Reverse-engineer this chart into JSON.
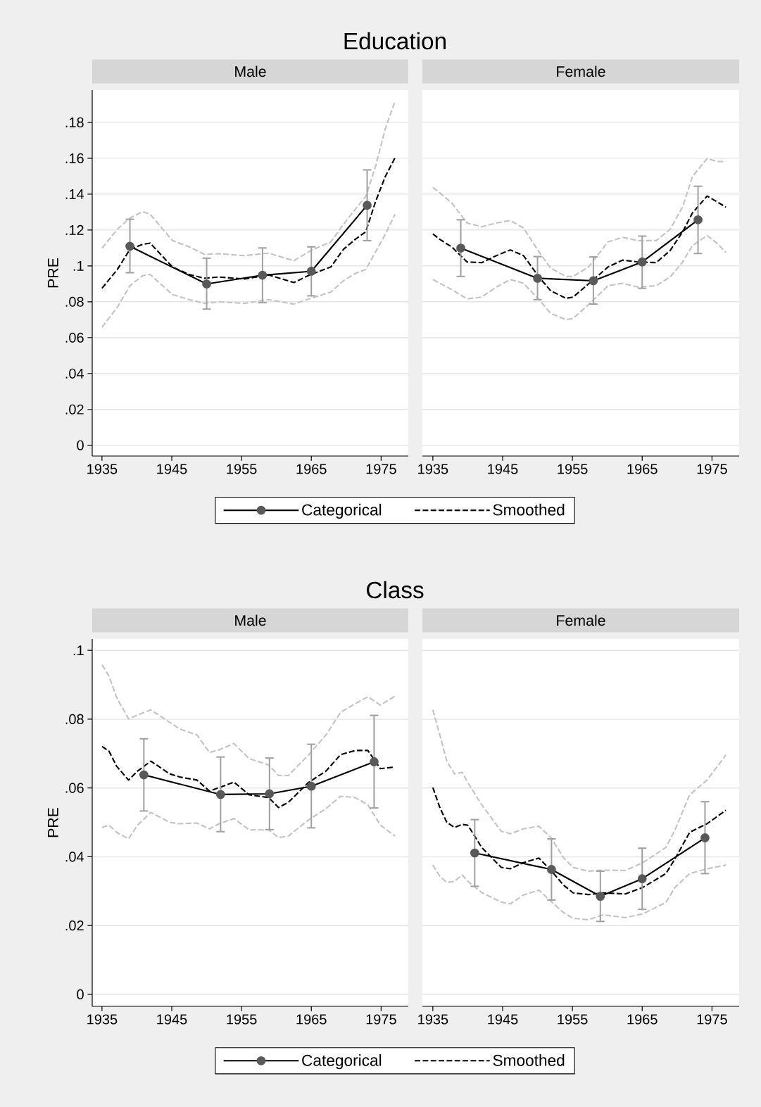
{
  "chart_data": [
    {
      "type": "line",
      "title": "Education",
      "subtitle": "Male",
      "ylabel": "PRE",
      "xlim": [
        1933.6,
        1978.9
      ],
      "ylim": [
        -0.006,
        0.198
      ],
      "xticks": [
        1935,
        1945,
        1955,
        1965,
        1975
      ],
      "yticks": [
        {
          "value": 0,
          "label": "0"
        },
        {
          "value": 0.02,
          "label": ".02"
        },
        {
          "value": 0.04,
          "label": ".04"
        },
        {
          "value": 0.06,
          "label": ".06"
        },
        {
          "value": 0.08,
          "label": ".08"
        },
        {
          "value": 0.1,
          "label": ".1"
        },
        {
          "value": 0.12,
          "label": ".12"
        },
        {
          "value": 0.14,
          "label": ".14"
        },
        {
          "value": 0.16,
          "label": ".16"
        },
        {
          "value": 0.18,
          "label": ".18"
        }
      ],
      "grid": "y",
      "legend": "bottom",
      "series": [
        {
          "name": "Categorical",
          "color": "#000000",
          "marker": "circle",
          "x": [
            1939,
            1950,
            1958,
            1965,
            1973
          ],
          "values": [
            0.1109,
            0.0899,
            0.0948,
            0.097,
            0.1338
          ],
          "errors": [
            [
              0.0962,
              0.126
            ],
            [
              0.0759,
              0.1043
            ],
            [
              0.0795,
              0.11
            ],
            [
              0.0833,
              0.1106
            ],
            [
              0.1141,
              0.1535
            ]
          ]
        },
        {
          "name": "Smoothed",
          "color": "#000000",
          "marker": "none",
          "line_style": "dashed",
          "x": [
            1935,
            1937.2,
            1939.0,
            1940.8,
            1941.9,
            1945.1,
            1947.5,
            1949.7,
            1951.8,
            1955.4,
            1958.9,
            1962.5,
            1964.9,
            1967.8,
            1969.6,
            1971.3,
            1972.8,
            1974.2,
            1975.6,
            1977.0
          ],
          "values": [
            0.0875,
            0.098,
            0.1092,
            0.112,
            0.1127,
            0.0994,
            0.0952,
            0.0931,
            0.0938,
            0.0927,
            0.0949,
            0.0907,
            0.0952,
            0.0994,
            0.1092,
            0.1148,
            0.119,
            0.1358,
            0.1498,
            0.1603
          ]
        },
        {
          "color": "#c4c4c4",
          "marker": "none",
          "line_style": "dashed",
          "x": [
            1935,
            1937.2,
            1939.0,
            1940.8,
            1941.9,
            1945.1,
            1947.5,
            1949.7,
            1951.8,
            1955.4,
            1958.9,
            1962.5,
            1964.9,
            1967.8,
            1969.6,
            1971.3,
            1972.8,
            1974.2,
            1975.6,
            1977.0
          ],
          "values": [
            0.0658,
            0.077,
            0.0889,
            0.0945,
            0.0952,
            0.084,
            0.0812,
            0.0791,
            0.08,
            0.0791,
            0.0812,
            0.0787,
            0.0819,
            0.0854,
            0.0917,
            0.0958,
            0.098,
            0.1078,
            0.1176,
            0.1288
          ]
        },
        {
          "color": "#c4c4c4",
          "marker": "none",
          "line_style": "dashed",
          "x": [
            1935,
            1937.2,
            1939.0,
            1940.8,
            1941.9,
            1945.1,
            1947.5,
            1949.7,
            1951.8,
            1955.4,
            1958.9,
            1962.5,
            1964.9,
            1967.8,
            1969.6,
            1971.3,
            1972.8,
            1974.2,
            1975.6,
            1977.0
          ],
          "values": [
            0.1099,
            0.1204,
            0.1267,
            0.1302,
            0.1288,
            0.1141,
            0.1106,
            0.1064,
            0.1068,
            0.1057,
            0.1071,
            0.1029,
            0.1085,
            0.1134,
            0.1232,
            0.1316,
            0.1386,
            0.1554,
            0.1764,
            0.1918
          ]
        }
      ]
    },
    {
      "type": "line",
      "subtitle": "Female",
      "xlim": [
        1933.5,
        1978.9
      ],
      "ylim": [
        -0.006,
        0.198
      ],
      "xticks": [
        1935,
        1945,
        1955,
        1965,
        1975
      ],
      "yticks": [
        {
          "value": 0,
          "label": null
        },
        {
          "value": 0.02,
          "label": null
        },
        {
          "value": 0.04,
          "label": null
        },
        {
          "value": 0.06,
          "label": null
        },
        {
          "value": 0.08,
          "label": null
        },
        {
          "value": 0.1,
          "label": null
        },
        {
          "value": 0.12,
          "label": null
        },
        {
          "value": 0.14,
          "label": null
        },
        {
          "value": 0.16,
          "label": null
        },
        {
          "value": 0.18,
          "label": null
        }
      ],
      "grid": "y",
      "tick_labels": "x",
      "series": [
        {
          "color": "#000000",
          "marker": "circle",
          "x": [
            1939,
            1950,
            1958,
            1965,
            1973
          ],
          "values": [
            0.1099,
            0.0931,
            0.0917,
            0.1022,
            0.1257
          ],
          "errors": [
            [
              0.0941,
              0.1257
            ],
            [
              0.0812,
              0.1052
            ],
            [
              0.0787,
              0.105
            ],
            [
              0.0875,
              0.1166
            ],
            [
              0.1069,
              0.1444
            ]
          ]
        },
        {
          "color": "#000000",
          "marker": "none",
          "line_style": "dashed",
          "x": [
            1935,
            1936,
            1937.7,
            1939.9,
            1942,
            1944.1,
            1946.1,
            1948,
            1950.2,
            1951.9,
            1954.1,
            1955.1,
            1957.3,
            1960.1,
            1962.2,
            1964.4,
            1967,
            1969,
            1970.8,
            1972.2,
            1974.3,
            1975.7,
            1977
          ],
          "values": [
            0.1178,
            0.1148,
            0.1106,
            0.1022,
            0.1018,
            0.1057,
            0.1089,
            0.1057,
            0.0938,
            0.0861,
            0.0819,
            0.0826,
            0.0899,
            0.0994,
            0.1032,
            0.1022,
            0.1018,
            0.1085,
            0.119,
            0.1295,
            0.1389,
            0.1358,
            0.1327
          ]
        },
        {
          "color": "#c4c4c4",
          "marker": "none",
          "line_style": "dashed",
          "x": [
            1935,
            1936,
            1937.7,
            1939.9,
            1942,
            1944.1,
            1946.1,
            1948,
            1950.2,
            1951.9,
            1954.1,
            1955.1,
            1957.3,
            1960.1,
            1962.2,
            1964.4,
            1967,
            1969,
            1970.8,
            1972.2,
            1974.3,
            1975.7,
            1977
          ],
          "values": [
            0.0924,
            0.0903,
            0.0868,
            0.0816,
            0.0826,
            0.0882,
            0.0924,
            0.0903,
            0.0812,
            0.0735,
            0.07,
            0.0707,
            0.0784,
            0.0889,
            0.0903,
            0.0882,
            0.0889,
            0.0938,
            0.1022,
            0.1113,
            0.1169,
            0.1127,
            0.1075
          ]
        },
        {
          "color": "#c4c4c4",
          "marker": "none",
          "line_style": "dashed",
          "x": [
            1935,
            1936,
            1937.7,
            1939.9,
            1942,
            1944.1,
            1946.1,
            1948,
            1950.2,
            1951.9,
            1954.1,
            1955.1,
            1957.3,
            1960.1,
            1962.2,
            1964.4,
            1967,
            1969,
            1970.8,
            1972.2,
            1974.3,
            1975.7,
            1977
          ],
          "values": [
            0.1437,
            0.1407,
            0.1351,
            0.1239,
            0.1218,
            0.1239,
            0.1253,
            0.1211,
            0.1078,
            0.0987,
            0.0941,
            0.0941,
            0.0994,
            0.1134,
            0.1159,
            0.1141,
            0.1141,
            0.1204,
            0.133,
            0.1498,
            0.1598,
            0.1582,
            0.1582
          ]
        }
      ]
    },
    {
      "type": "line",
      "title": "Class",
      "subtitle": "Male",
      "ylabel": "PRE",
      "xlim": [
        1933.6,
        1978.9
      ],
      "ylim": [
        -0.0035,
        0.1033
      ],
      "xticks": [
        1935,
        1945,
        1955,
        1965,
        1975
      ],
      "yticks": [
        {
          "value": 0,
          "label": "0"
        },
        {
          "value": 0.02,
          "label": ".02"
        },
        {
          "value": 0.04,
          "label": ".04"
        },
        {
          "value": 0.06,
          "label": ".06"
        },
        {
          "value": 0.08,
          "label": ".08"
        },
        {
          "value": 0.1,
          "label": ".1"
        }
      ],
      "grid": "y",
      "legend": "bottom",
      "series": [
        {
          "name": "Categorical",
          "color": "#000000",
          "marker": "circle",
          "x": [
            1941,
            1952,
            1959,
            1965,
            1974
          ],
          "values": [
            0.0638,
            0.0581,
            0.0583,
            0.0605,
            0.0676
          ],
          "errors": [
            [
              0.0533,
              0.0743
            ],
            [
              0.0473,
              0.069
            ],
            [
              0.0479,
              0.0687
            ],
            [
              0.0484,
              0.0727
            ],
            [
              0.0542,
              0.0811
            ]
          ]
        },
        {
          "name": "Smoothed",
          "color": "#000000",
          "marker": "none",
          "line_style": "dashed",
          "x": [
            1935,
            1936,
            1937.1,
            1938.8,
            1940.1,
            1942,
            1944.7,
            1946.1,
            1948.6,
            1950.4,
            1951.8,
            1953.9,
            1956.1,
            1958.9,
            1960.3,
            1961.7,
            1964.6,
            1967.1,
            1969.2,
            1971.3,
            1973.1,
            1974.9,
            1977
          ],
          "values": [
            0.0721,
            0.0707,
            0.0663,
            0.0623,
            0.0649,
            0.0678,
            0.0641,
            0.0632,
            0.0623,
            0.0591,
            0.0601,
            0.0617,
            0.058,
            0.0572,
            0.0543,
            0.0558,
            0.0616,
            0.0649,
            0.0697,
            0.0709,
            0.0709,
            0.0656,
            0.0661
          ]
        },
        {
          "color": "#c4c4c4",
          "marker": "none",
          "line_style": "dashed",
          "x": [
            1935,
            1936,
            1937.1,
            1938.8,
            1940.1,
            1942,
            1944.7,
            1946.1,
            1948.6,
            1950.4,
            1951.8,
            1953.9,
            1956.1,
            1958.9,
            1960.3,
            1961.7,
            1964.6,
            1967.1,
            1969.2,
            1971.3,
            1973.1,
            1974.9,
            1977
          ],
          "values": [
            0.0485,
            0.0492,
            0.0471,
            0.0452,
            0.0492,
            0.0529,
            0.05,
            0.0496,
            0.0498,
            0.0481,
            0.0496,
            0.0511,
            0.0478,
            0.0478,
            0.0456,
            0.046,
            0.0507,
            0.054,
            0.0576,
            0.0572,
            0.0551,
            0.0492,
            0.046
          ]
        },
        {
          "color": "#c4c4c4",
          "marker": "none",
          "line_style": "dashed",
          "x": [
            1935,
            1936,
            1937.1,
            1938.8,
            1940.1,
            1942,
            1944.7,
            1946.1,
            1948.6,
            1950.4,
            1951.8,
            1953.9,
            1956.1,
            1958.9,
            1960.3,
            1961.7,
            1964.6,
            1967.1,
            1969.2,
            1971.3,
            1973.1,
            1974.9,
            1977
          ],
          "values": [
            0.0958,
            0.0925,
            0.0863,
            0.0801,
            0.0812,
            0.0827,
            0.0791,
            0.0772,
            0.0754,
            0.0703,
            0.0711,
            0.0729,
            0.0685,
            0.0667,
            0.0636,
            0.0636,
            0.0696,
            0.0754,
            0.082,
            0.0845,
            0.0865,
            0.0841,
            0.0867
          ]
        }
      ]
    },
    {
      "type": "line",
      "subtitle": "Female",
      "xlim": [
        1933.5,
        1978.9
      ],
      "ylim": [
        -0.0035,
        0.1033
      ],
      "xticks": [
        1935,
        1945,
        1955,
        1965,
        1975
      ],
      "yticks": [
        {
          "value": 0,
          "label": null
        },
        {
          "value": 0.02,
          "label": null
        },
        {
          "value": 0.04,
          "label": null
        },
        {
          "value": 0.06,
          "label": null
        },
        {
          "value": 0.08,
          "label": null
        },
        {
          "value": 0.1,
          "label": null
        }
      ],
      "grid": "y",
      "tick_labels": "x",
      "series": [
        {
          "color": "#000000",
          "marker": "circle",
          "x": [
            1941,
            1952,
            1959,
            1965,
            1974
          ],
          "values": [
            0.0411,
            0.0363,
            0.0285,
            0.0336,
            0.0455
          ],
          "errors": [
            [
              0.0314,
              0.0508
            ],
            [
              0.0274,
              0.0452
            ],
            [
              0.0212,
              0.0358
            ],
            [
              0.0247,
              0.0425
            ],
            [
              0.0351,
              0.056
            ]
          ]
        },
        {
          "color": "#000000",
          "marker": "none",
          "line_style": "dashed",
          "x": [
            1935,
            1936,
            1937,
            1938.1,
            1939.2,
            1940,
            1942,
            1944.8,
            1946.1,
            1948,
            1950.2,
            1951.9,
            1953.7,
            1955.1,
            1957.3,
            1959.4,
            1962.6,
            1965.1,
            1968.4,
            1969.7,
            1971.8,
            1974.3,
            1977
          ],
          "values": [
            0.0601,
            0.0543,
            0.05,
            0.0485,
            0.0494,
            0.0492,
            0.0427,
            0.0369,
            0.0365,
            0.0383,
            0.0396,
            0.0361,
            0.0318,
            0.0295,
            0.029,
            0.0295,
            0.0292,
            0.0311,
            0.0351,
            0.0394,
            0.0471,
            0.0496,
            0.0535
          ]
        },
        {
          "color": "#c4c4c4",
          "marker": "none",
          "line_style": "dashed",
          "x": [
            1935,
            1936,
            1937,
            1938.1,
            1939.2,
            1940,
            1942,
            1944.8,
            1946.1,
            1948,
            1950.2,
            1951.9,
            1953.7,
            1955.1,
            1957.3,
            1959.4,
            1962.6,
            1965.1,
            1968.4,
            1969.7,
            1971.8,
            1974.3,
            1977
          ],
          "values": [
            0.0376,
            0.0343,
            0.0325,
            0.0329,
            0.0347,
            0.0329,
            0.0296,
            0.0268,
            0.0263,
            0.0289,
            0.0303,
            0.0271,
            0.0238,
            0.0221,
            0.0217,
            0.0231,
            0.0223,
            0.0234,
            0.0267,
            0.0311,
            0.0351,
            0.0365,
            0.0376
          ]
        },
        {
          "color": "#c4c4c4",
          "marker": "none",
          "line_style": "dashed",
          "x": [
            1935,
            1936,
            1937,
            1938.1,
            1939.2,
            1940,
            1942,
            1944.8,
            1946.1,
            1948,
            1950.2,
            1951.9,
            1953.7,
            1955.1,
            1957.3,
            1959.4,
            1962.6,
            1965.1,
            1968.4,
            1969.7,
            1971.8,
            1974.3,
            1977
          ],
          "values": [
            0.0827,
            0.0754,
            0.0678,
            0.0641,
            0.0645,
            0.0616,
            0.0551,
            0.0474,
            0.0467,
            0.0481,
            0.0489,
            0.0456,
            0.0398,
            0.0369,
            0.0358,
            0.0361,
            0.036,
            0.0383,
            0.0427,
            0.0478,
            0.058,
            0.0623,
            0.0696
          ]
        }
      ]
    }
  ]
}
